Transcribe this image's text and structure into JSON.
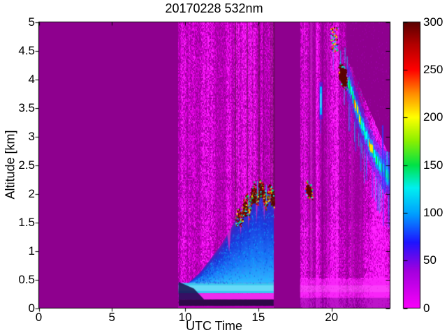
{
  "chart_data": {
    "type": "heatmap",
    "title": "20170228 532nm",
    "xlabel": "UTC Time",
    "ylabel": "Altitude [km]",
    "xlim": [
      0,
      24
    ],
    "ylim": [
      0,
      5
    ],
    "grid": false,
    "x_ticks": [
      {
        "v": 0,
        "label": "0"
      },
      {
        "v": 5,
        "label": "5"
      },
      {
        "v": 10,
        "label": "10"
      },
      {
        "v": 15,
        "label": "15"
      },
      {
        "v": 20,
        "label": "20"
      }
    ],
    "y_ticks": [
      {
        "v": 0,
        "label": "0"
      },
      {
        "v": 0.5,
        "label": "0.5"
      },
      {
        "v": 1,
        "label": "1"
      },
      {
        "v": 1.5,
        "label": "1.5"
      },
      {
        "v": 2,
        "label": "2"
      },
      {
        "v": 2.5,
        "label": "2.5"
      },
      {
        "v": 3,
        "label": "3"
      },
      {
        "v": 3.5,
        "label": "3.5"
      },
      {
        "v": 4,
        "label": "4"
      },
      {
        "v": 4.5,
        "label": "4.5"
      },
      {
        "v": 5,
        "label": "5"
      }
    ],
    "colorbar": {
      "range": [
        0,
        300
      ],
      "ticks": [
        {
          "v": 0,
          "label": "0"
        },
        {
          "v": 50,
          "label": "50"
        },
        {
          "v": 100,
          "label": "100"
        },
        {
          "v": 150,
          "label": "150"
        },
        {
          "v": 200,
          "label": "200"
        },
        {
          "v": 250,
          "label": "250"
        },
        {
          "v": 300,
          "label": "300"
        }
      ],
      "stops": [
        [
          0,
          "#fa00fa"
        ],
        [
          0.13,
          "#a300de"
        ],
        [
          0.23,
          "#1e14ff"
        ],
        [
          0.33,
          "#00a0ff"
        ],
        [
          0.42,
          "#00f0f0"
        ],
        [
          0.5,
          "#00e246"
        ],
        [
          0.585,
          "#8cf000"
        ],
        [
          0.667,
          "#ffff00"
        ],
        [
          0.75,
          "#ff8c00"
        ],
        [
          0.833,
          "#ff0000"
        ],
        [
          0.92,
          "#b40000"
        ],
        [
          1,
          "#5a0000"
        ]
      ]
    },
    "background_color": "#8e008e",
    "noise_levels": [
      [
        1.25,
        "#ff22ff"
      ],
      [
        1.02,
        "#ea07ea"
      ],
      [
        0.82,
        "#cf00cf"
      ],
      [
        0.64,
        "#b400b4"
      ],
      [
        0,
        "#9a009a"
      ]
    ],
    "palettes": {
      "cloud": [
        "#5c0404",
        "#a00000",
        "#ff2a00",
        "#ffe400",
        "#00e050",
        "#00ffff"
      ],
      "speckle": [
        "#ffe400",
        "#00e050",
        "#ff3000",
        "#00ffff",
        "#3048ff",
        "#5c0404",
        "#ff30ff"
      ]
    },
    "bands": [
      {
        "t0": 9.52,
        "t1": 16.07,
        "type": "daytime-noise",
        "bottom_bright": false
      },
      {
        "t0": 17.85,
        "t1": 24,
        "type": "daytime-noise",
        "bottom_bright": true,
        "dark_wedge": {
          "t_start": 21.0,
          "alt_at_start": 4.42,
          "slope": -0.593
        }
      }
    ],
    "boundary_layer": {
      "band": [
        9.55,
        16.05
      ],
      "profile": [
        [
          9.55,
          0.38
        ],
        [
          10.0,
          0.4
        ],
        [
          10.5,
          0.5
        ],
        [
          11.0,
          0.62
        ],
        [
          11.5,
          0.78
        ],
        [
          12.0,
          0.95
        ],
        [
          12.5,
          1.12
        ],
        [
          13.0,
          1.34
        ],
        [
          13.4,
          1.52
        ],
        [
          13.6,
          1.62
        ],
        [
          13.8,
          1.56
        ],
        [
          14.0,
          1.76
        ],
        [
          14.2,
          1.86
        ],
        [
          14.35,
          1.7
        ],
        [
          14.5,
          1.95
        ],
        [
          14.7,
          2.06
        ],
        [
          14.9,
          1.9
        ],
        [
          15.1,
          2.12
        ],
        [
          15.3,
          2.0
        ],
        [
          15.5,
          1.86
        ],
        [
          15.7,
          2.02
        ],
        [
          15.9,
          1.96
        ],
        [
          16.05,
          1.9
        ]
      ],
      "notches": [
        [
          12.88,
          13.14,
          0.97
        ],
        [
          13.7,
          13.9,
          1.28
        ],
        [
          14.25,
          14.42,
          1.38
        ],
        [
          14.8,
          14.98,
          1.5
        ],
        [
          15.32,
          15.47,
          1.52
        ]
      ],
      "dark_streaks": [
        [
          13.38,
          2,
          0.5
        ],
        [
          13.55,
          1,
          0.35
        ],
        [
          14.2,
          2,
          0.45
        ],
        [
          14.6,
          1,
          0.4
        ],
        [
          15.0,
          2,
          0.5
        ],
        [
          15.35,
          1,
          0.4
        ],
        [
          15.8,
          2,
          0.45
        ],
        [
          15.97,
          3,
          0.55
        ]
      ],
      "cloud_blobs": [
        [
          13.95,
          14.18,
          1.62,
          1.85
        ],
        [
          14.5,
          14.75,
          1.85,
          2.08
        ],
        [
          15.05,
          15.3,
          1.95,
          2.18
        ],
        [
          15.85,
          16.05,
          1.8,
          2.0
        ]
      ],
      "spikes": [
        [
          14.32,
          0.25
        ],
        [
          14.92,
          0.3
        ],
        [
          15.52,
          0.28
        ]
      ]
    },
    "evening_features": {
      "bright_streaks": [
        [
          18.1,
          2,
          0.22
        ],
        [
          18.55,
          3,
          0.28
        ],
        [
          19.7,
          2,
          0.2
        ],
        [
          20.3,
          2,
          0.25
        ],
        [
          21.35,
          2,
          0.2
        ],
        [
          22.0,
          1,
          0.18
        ]
      ],
      "dark_streaks": [
        [
          19.35,
          2,
          0.25
        ]
      ],
      "cloud_small": {
        "center": [
          18.42,
          2.06
        ],
        "rt": 0.28,
        "ra": 0.16
      },
      "blue_streak": {
        "t": 19.25,
        "alt": [
          3.3,
          3.95
        ]
      },
      "cloud_speckle": {
        "t": [
          19.92,
          20.38
        ],
        "alt": [
          4.5,
          4.92
        ]
      },
      "cloud_dense": {
        "center": [
          20.78,
          4.05
        ],
        "rt": 0.33,
        "ra": 0.2,
        "tilt": -0.35
      },
      "spikes_up": [
        [
          20.6,
          4.25,
          4.5
        ],
        [
          20.9,
          4.28,
          4.55
        ],
        [
          21.05,
          4.18,
          4.4
        ],
        [
          20.85,
          3.55,
          3.82
        ]
      ],
      "descent": [
        [
          21.05,
          3.97
        ],
        [
          21.35,
          3.8
        ],
        [
          21.7,
          3.5
        ],
        [
          22.0,
          3.25
        ],
        [
          22.4,
          3.0
        ],
        [
          22.8,
          2.75
        ],
        [
          23.2,
          2.55
        ],
        [
          23.6,
          2.4
        ],
        [
          24,
          2.25
        ]
      ],
      "yellow_segments": [
        [
          21.55,
          21.95
        ],
        [
          22.55,
          22.85
        ]
      ],
      "tails": [
        [
          21.2,
          0.5
        ],
        [
          21.6,
          0.55
        ],
        [
          21.95,
          0.6
        ],
        [
          22.35,
          0.5
        ],
        [
          22.75,
          0.55
        ],
        [
          23.1,
          0.6
        ],
        [
          23.5,
          0.7
        ],
        [
          23.85,
          0.6
        ]
      ],
      "right_cluster": [
        23.45,
        23.6,
        23.75,
        23.9
      ]
    }
  }
}
